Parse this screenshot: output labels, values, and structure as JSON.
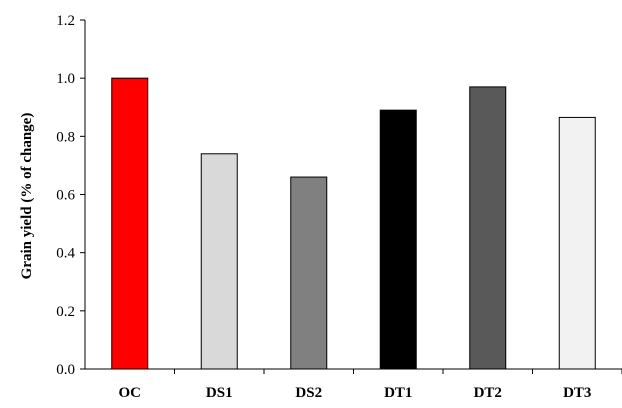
{
  "chart_data": {
    "type": "bar",
    "categories": [
      "OC",
      "DS1",
      "DS2",
      "DT1",
      "DT2",
      "DT3"
    ],
    "values": [
      1.0,
      0.74,
      0.66,
      0.89,
      0.97,
      0.865
    ],
    "bar_colors": [
      "#ff0000",
      "#d9d9d9",
      "#808080",
      "#000000",
      "#595959",
      "#f2f2f2"
    ],
    "title": "",
    "xlabel": "",
    "ylabel": "Grain yield (% of change)",
    "ylim": [
      0,
      1.2
    ],
    "yticks": [
      "0.0",
      "0.2",
      "0.4",
      "0.6",
      "0.8",
      "1.0",
      "1.2"
    ],
    "grid": false,
    "legend": "none"
  }
}
